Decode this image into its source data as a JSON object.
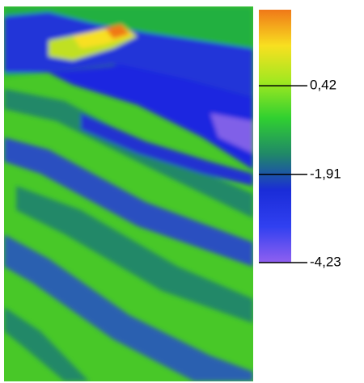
{
  "chart_data": {
    "type": "heatmap",
    "colormap": [
      "#f07818",
      "#f8e020",
      "#a0e820",
      "#30d030",
      "#208868",
      "#1a2cd8",
      "#3040f0",
      "#9060f0"
    ],
    "clim": [
      -4.23,
      2.42
    ],
    "cticks": [
      {
        "value": 0.42,
        "label": "0,42"
      },
      {
        "value": -1.91,
        "label": "-1,91"
      },
      {
        "value": -4.23,
        "label": "-4,23"
      }
    ]
  }
}
